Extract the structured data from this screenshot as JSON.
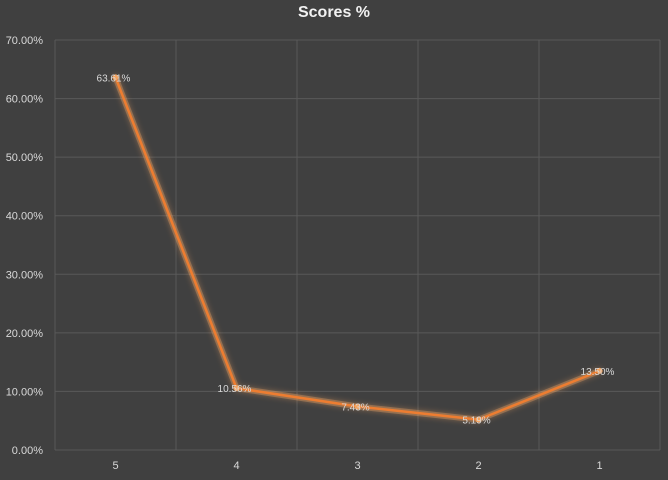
{
  "chart_data": {
    "type": "line",
    "title": "Scores %",
    "xlabel": "",
    "ylabel": "",
    "categories": [
      "5",
      "4",
      "3",
      "2",
      "1"
    ],
    "series": [
      {
        "values": [
          63.61,
          10.56,
          7.43,
          5.19,
          13.5
        ],
        "labels": [
          "63.61%",
          "10.56%",
          "7.43%",
          "5.19%",
          "13.50%"
        ]
      }
    ],
    "ylim": [
      0,
      70
    ],
    "yticks": [
      "0.00%",
      "10.00%",
      "20.00%",
      "30.00%",
      "40.00%",
      "50.00%",
      "60.00%",
      "70.00%"
    ],
    "grid": true,
    "legend": "none",
    "colors": {
      "background": "#404040",
      "grid": "#595959",
      "line": "#ed7d31",
      "glow": "#f4a460",
      "text": "#d9d9d9",
      "title": "#f2f2f2"
    }
  }
}
